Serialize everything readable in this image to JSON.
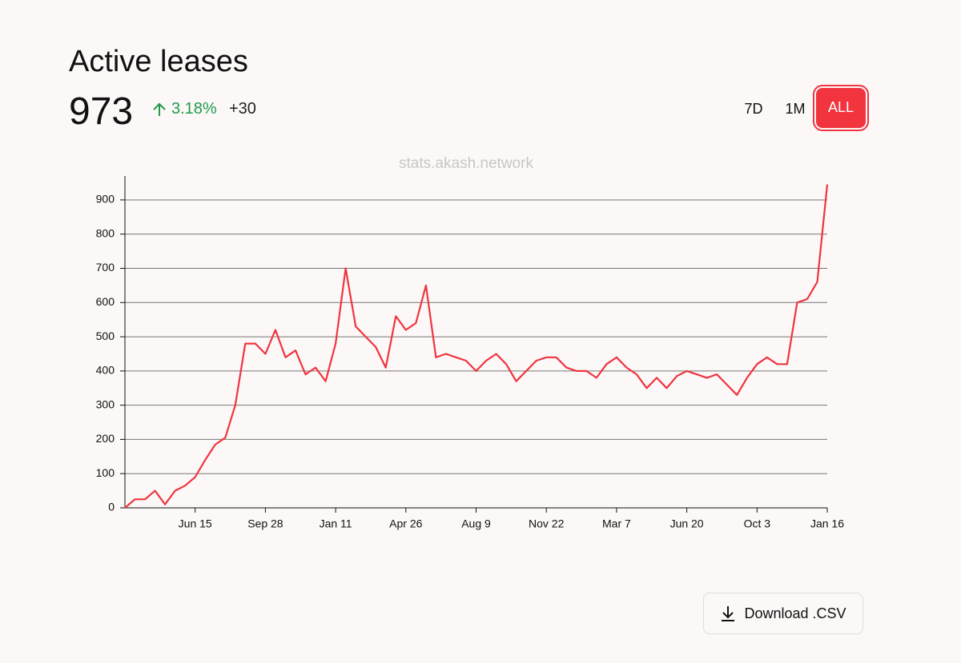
{
  "header": {
    "title": "Active leases",
    "value": "973",
    "change": "3.18%",
    "delta": "+30",
    "ranges": [
      "7D",
      "1M",
      "ALL"
    ]
  },
  "watermark": "stats.akash.network",
  "download": "Download .CSV",
  "chart_data": {
    "type": "line",
    "color": "#f0343f",
    "categories": [
      null,
      null,
      null,
      null,
      null,
      null,
      null,
      "Jun 15",
      null,
      null,
      null,
      null,
      null,
      null,
      "Sep 28",
      null,
      null,
      null,
      null,
      null,
      null,
      "Jan 11",
      null,
      null,
      null,
      null,
      null,
      null,
      "Apr 26",
      null,
      null,
      null,
      null,
      null,
      null,
      "Aug 9",
      null,
      null,
      null,
      null,
      null,
      null,
      "Nov 22",
      null,
      null,
      null,
      null,
      null,
      null,
      "Mar 7",
      null,
      null,
      null,
      null,
      null,
      null,
      "Jun 20",
      null,
      null,
      null,
      null,
      null,
      null,
      "Oct 3",
      null,
      null,
      null,
      null,
      null,
      null,
      "Jan 16"
    ],
    "values": [
      0,
      25,
      25,
      50,
      10,
      50,
      65,
      90,
      140,
      185,
      205,
      300,
      480,
      480,
      450,
      520,
      440,
      460,
      390,
      410,
      370,
      480,
      700,
      530,
      500,
      470,
      410,
      560,
      520,
      540,
      650,
      440,
      450,
      440,
      430,
      400,
      430,
      450,
      420,
      370,
      400,
      430,
      440,
      440,
      410,
      400,
      400,
      380,
      420,
      440,
      410,
      390,
      350,
      380,
      350,
      385,
      400,
      390,
      380,
      390,
      360,
      330,
      380,
      420,
      440,
      420,
      420,
      600,
      610,
      660,
      945
    ],
    "ylim": [
      0,
      970
    ],
    "yticks": [
      0,
      100,
      200,
      300,
      400,
      500,
      600,
      700,
      800,
      900
    ],
    "grid": true
  }
}
